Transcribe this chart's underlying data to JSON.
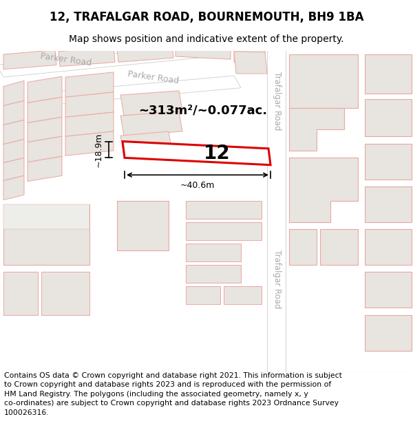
{
  "title": "12, TRAFALGAR ROAD, BOURNEMOUTH, BH9 1BA",
  "subtitle": "Map shows position and indicative extent of the property.",
  "footer_lines": [
    "Contains OS data © Crown copyright and database right 2021. This information is subject to Crown copyright and database rights 2023 and is reproduced with the permission of",
    "HM Land Registry. The polygons (including the associated geometry, namely x, y co-ordinates) are subject to Crown copyright and database rights 2023 Ordnance Survey",
    "100026316."
  ],
  "map_bg": "#f5f3f0",
  "building_fill": "#e8e4e0",
  "building_stroke": "#e8a8a0",
  "road_stroke": "#aaaaaa",
  "highlight_stroke": "#dd0000",
  "highlight_fill": "#ffffff",
  "area_label": "~313m²/~0.077ac.",
  "width_label": "~40.6m",
  "height_label": "~18.9m",
  "number_label": "12",
  "title_fontsize": 12,
  "subtitle_fontsize": 10,
  "footer_fontsize": 7.8,
  "road_label_color": "#aaaaaa",
  "road_label_size": 9
}
